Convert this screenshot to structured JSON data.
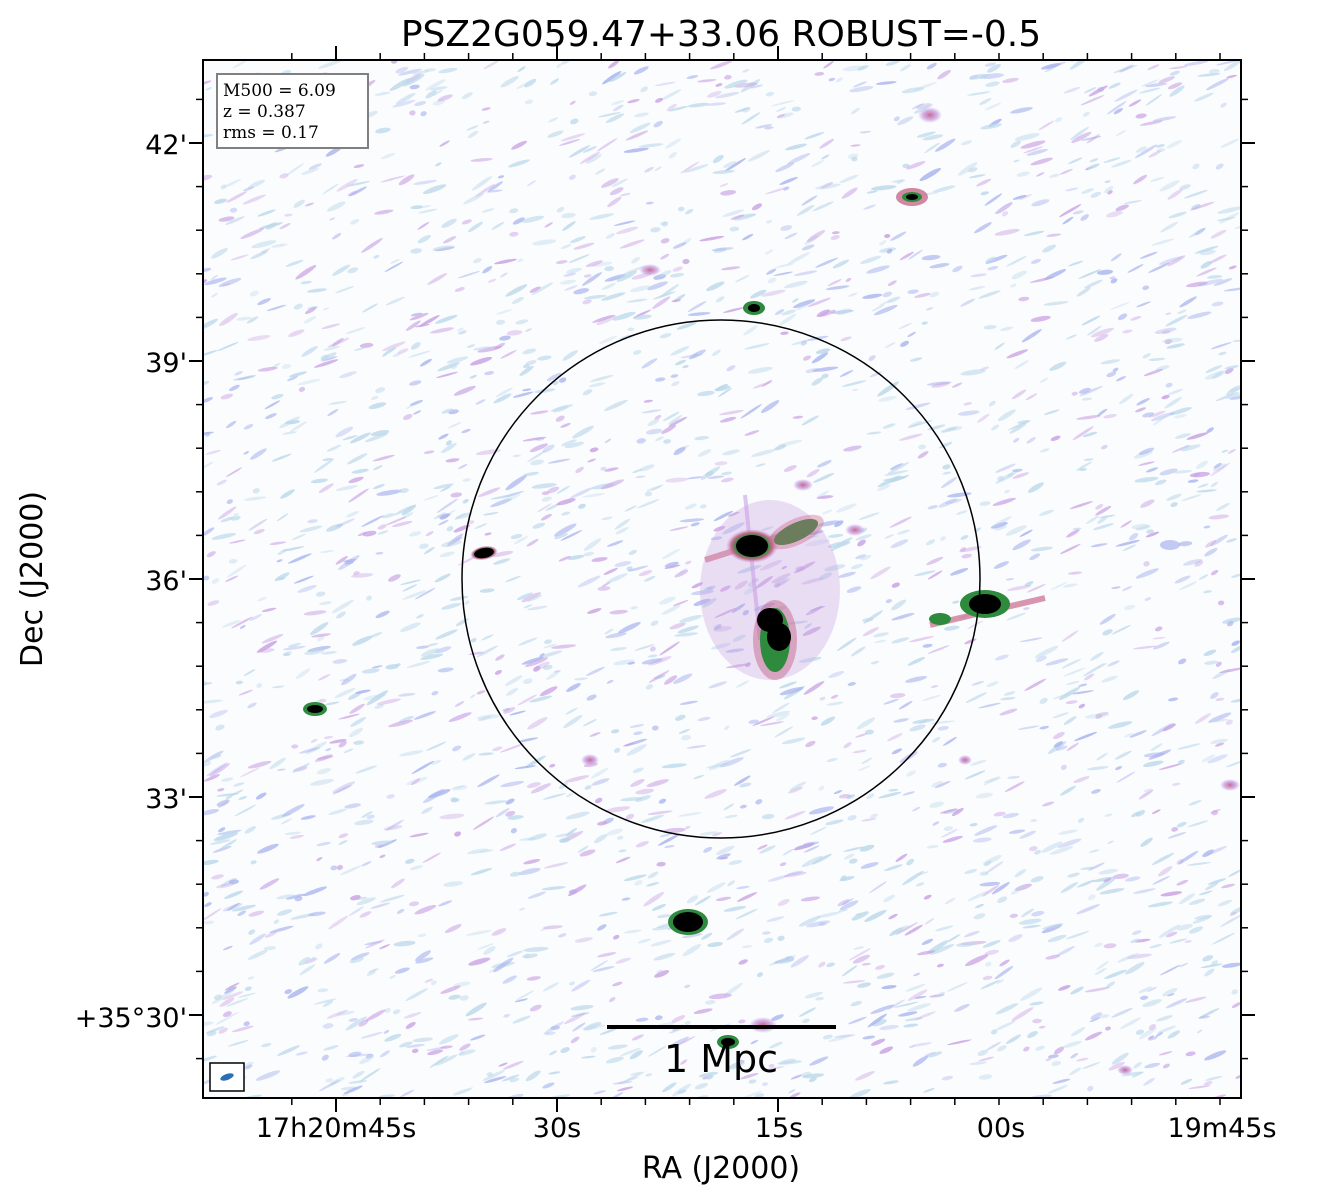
{
  "title": "PSZ2G059.47+33.06 ROBUST=-0.5",
  "axes": {
    "xlabel": "RA (J2000)",
    "ylabel": "Dec (J2000)",
    "x_ticks": [
      "17h20m45s",
      "30s",
      "15s",
      "00s",
      "19m45s"
    ],
    "y_ticks": [
      "42'",
      "39'",
      "36'",
      "33'",
      "+35°30'"
    ]
  },
  "info_box": {
    "line1": "M500 = 6.09",
    "line2": "z = 0.387",
    "line3": "rms = 0.17"
  },
  "scale_bar": {
    "label": "1 Mpc"
  },
  "colors": {
    "noise_light": "#bcd8ea",
    "noise_mid": "#a9b4ee",
    "emission_low": "#c9a2e3",
    "emission_mid": "#c86a8c",
    "emission_high": "#2e8a3c",
    "emission_peak": "#000000",
    "beam": "#2a6fb5"
  },
  "icons": {
    "beam": "beam-ellipse-icon",
    "r500": "r500-circle-icon"
  }
}
